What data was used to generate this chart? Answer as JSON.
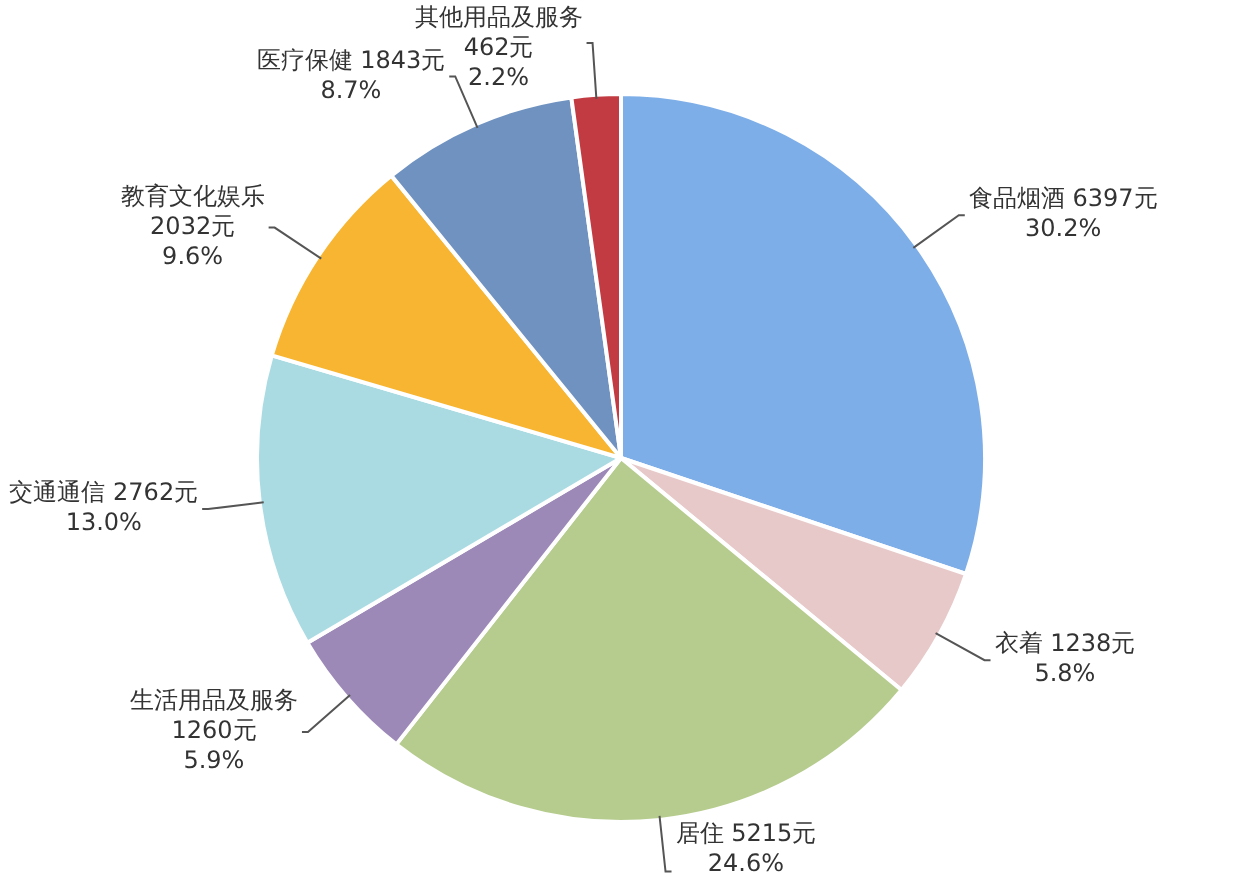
{
  "chart_data": {
    "type": "pie",
    "categories": [
      "食品烟酒",
      "衣着",
      "居住",
      "生活用品及服务",
      "交通通信",
      "教育文化娱乐",
      "医疗保健",
      "其他用品及服务"
    ],
    "values": [
      6397,
      1238,
      5215,
      1260,
      2762,
      2032,
      1843,
      462
    ],
    "colors": [
      "#7eaee8",
      "#e8c9c9",
      "#b6cc8e",
      "#9d89b8",
      "#aadbe3",
      "#f7b531",
      "#6f92c0",
      "#c23b42"
    ],
    "value_labels": [
      "6397元\n30.2%",
      "1238元\n5.8%",
      "5215元\n24.6%",
      "1260元\n5.9%",
      "2762元\n13.0%",
      "2032元\n9.6%",
      "1843元\n8.7%",
      "462元\n2.2%"
    ],
    "legend": false
  }
}
